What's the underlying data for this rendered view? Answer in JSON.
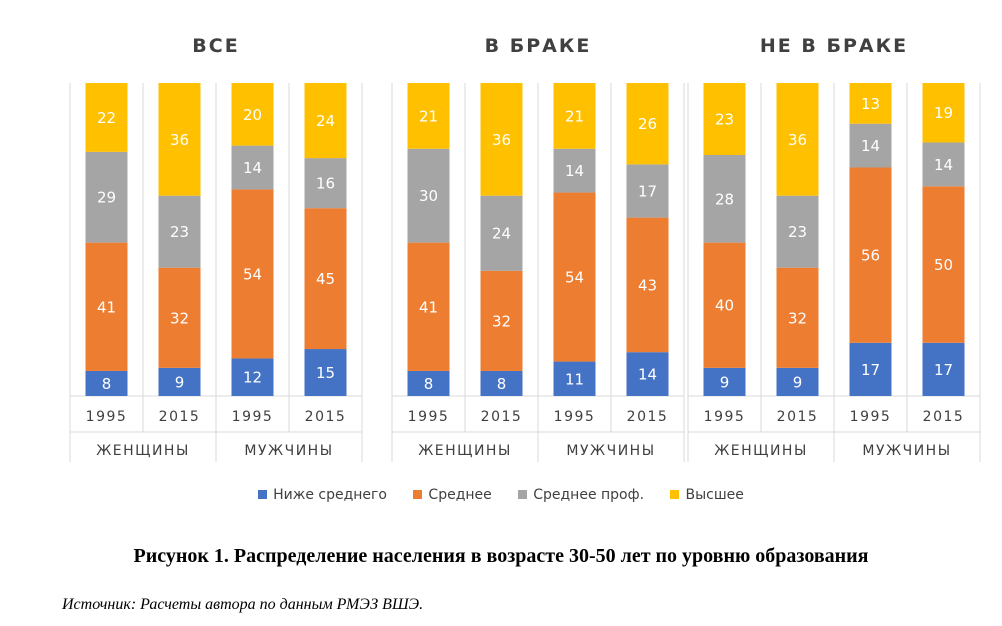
{
  "chart_data": {
    "type": "bar",
    "stacked": true,
    "colors": {
      "Ниже среднего": "#4472C4",
      "Среднее": "#ED7D31",
      "Среднее проф.": "#A5A5A5",
      "Высшее": "#FFC000"
    },
    "series_names": [
      "Ниже среднего",
      "Среднее",
      "Среднее проф.",
      "Высшее"
    ],
    "legend_position": "bottom",
    "panels": [
      {
        "title": "ВСЕ",
        "groups": [
          {
            "name": "ЖЕНЩИНЫ",
            "bars": [
              {
                "year": "1995",
                "values": [
                  8,
                  41,
                  29,
                  22
                ]
              },
              {
                "year": "2015",
                "values": [
                  9,
                  32,
                  23,
                  36
                ]
              }
            ]
          },
          {
            "name": "МУЖЧИНЫ",
            "bars": [
              {
                "year": "1995",
                "values": [
                  12,
                  54,
                  14,
                  20
                ]
              },
              {
                "year": "2015",
                "values": [
                  15,
                  45,
                  16,
                  24
                ]
              }
            ]
          }
        ]
      },
      {
        "title": "В БРАКЕ",
        "groups": [
          {
            "name": "ЖЕНЩИНЫ",
            "bars": [
              {
                "year": "1995",
                "values": [
                  8,
                  41,
                  30,
                  21
                ]
              },
              {
                "year": "2015",
                "values": [
                  8,
                  32,
                  24,
                  36
                ]
              }
            ]
          },
          {
            "name": "МУЖЧИНЫ",
            "bars": [
              {
                "year": "1995",
                "values": [
                  11,
                  54,
                  14,
                  21
                ]
              },
              {
                "year": "2015",
                "values": [
                  14,
                  43,
                  17,
                  26
                ]
              }
            ]
          }
        ]
      },
      {
        "title": "НЕ В БРАКЕ",
        "groups": [
          {
            "name": "ЖЕНЩИНЫ",
            "bars": [
              {
                "year": "1995",
                "values": [
                  9,
                  40,
                  28,
                  23
                ]
              },
              {
                "year": "2015",
                "values": [
                  9,
                  32,
                  23,
                  36
                ]
              }
            ]
          },
          {
            "name": "МУЖЧИНЫ",
            "bars": [
              {
                "year": "1995",
                "values": [
                  17,
                  56,
                  14,
                  13
                ]
              },
              {
                "year": "2015",
                "values": [
                  17,
                  50,
                  14,
                  19
                ]
              }
            ]
          }
        ]
      }
    ]
  },
  "legend": [
    {
      "label": "Ниже среднего",
      "color": "#4472C4"
    },
    {
      "label": "Среднее",
      "color": "#ED7D31"
    },
    {
      "label": "Среднее проф.",
      "color": "#A5A5A5"
    },
    {
      "label": "Высшее",
      "color": "#FFC000"
    }
  ],
  "caption": "Рисунок 1. Распределение населения в возрасте 30-50 лет по уровню образования",
  "source": "Источник: Расчеты автора по данным РМЭЗ ВШЭ."
}
